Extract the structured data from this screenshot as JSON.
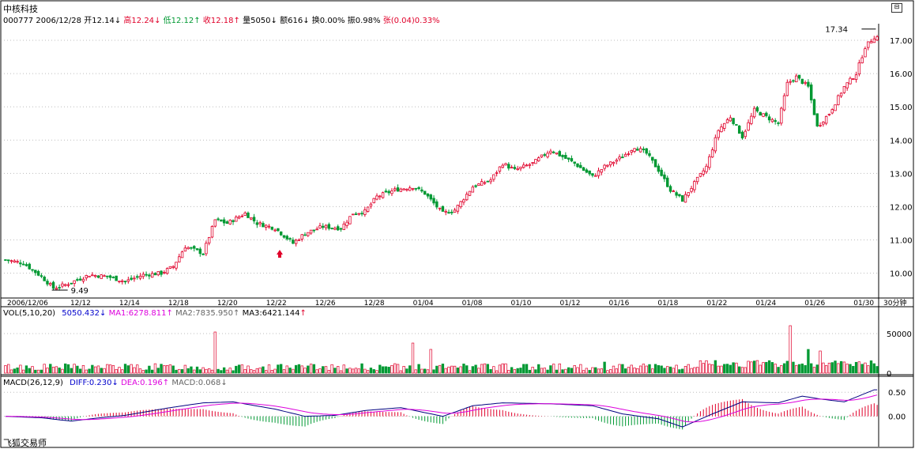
{
  "header": {
    "stock_name": "中核科技",
    "code": "000777",
    "date": "2006/12/28",
    "open_label": "开12.14",
    "high_label": "高12.24",
    "low_label": "低12.12",
    "close_label": "收12.18",
    "volume_label": "量5050",
    "amount_label": "额616",
    "turnover_label": "换0.00%",
    "amplitude_label": "振0.98%",
    "change_label": "张",
    "change_value": "(0.04)0.33%",
    "arrow_down": "↓",
    "arrow_up": "↑"
  },
  "volume_header": {
    "title": "VOL(5,10,20)",
    "value": "5050.432",
    "ma1": "MA1:6278.811",
    "ma2": "MA2:7835.950",
    "ma3": "MA3:6421.144"
  },
  "macd_header": {
    "title": "MACD(26,12,9)",
    "diff": "DIFF:0.230",
    "dea": "DEA:0.196",
    "macd": "MACD:0.068"
  },
  "brand": "飞狐交易师",
  "period_label": "30分钟",
  "colors": {
    "up": "#e0002a",
    "down": "#009933",
    "ma_pink": "#dd00dd",
    "diff_blue": "#000080",
    "grid": "#bdbdbd"
  },
  "chart_data": {
    "type": "candlestick",
    "price_axis": {
      "min": 9.3,
      "max": 17.5,
      "ticks": [
        "10.00",
        "11.00",
        "12.00",
        "13.00",
        "14.00",
        "15.00",
        "16.00",
        "17.00"
      ]
    },
    "date_labels": [
      "2006/12/06",
      "12/12",
      "12/14",
      "12/18",
      "12/20",
      "12/22",
      "12/26",
      "12/28",
      "01/04",
      "01/08",
      "01/10",
      "01/12",
      "01/16",
      "01/18",
      "01/22",
      "01/24",
      "01/26",
      "01/30"
    ],
    "annotations": {
      "high": "17.34",
      "low": "9.49"
    },
    "close_anchors": [
      [
        0,
        10.4
      ],
      [
        6,
        10.3
      ],
      [
        12,
        9.9
      ],
      [
        16,
        9.55
      ],
      [
        20,
        9.65
      ],
      [
        28,
        9.95
      ],
      [
        34,
        9.9
      ],
      [
        40,
        9.75
      ],
      [
        46,
        9.95
      ],
      [
        52,
        10.0
      ],
      [
        56,
        10.2
      ],
      [
        60,
        10.8
      ],
      [
        66,
        10.6
      ],
      [
        70,
        11.6
      ],
      [
        74,
        11.5
      ],
      [
        80,
        11.8
      ],
      [
        84,
        11.5
      ],
      [
        90,
        11.35
      ],
      [
        96,
        10.9
      ],
      [
        100,
        11.2
      ],
      [
        106,
        11.4
      ],
      [
        112,
        11.35
      ],
      [
        116,
        11.8
      ],
      [
        120,
        11.85
      ],
      [
        124,
        12.3
      ],
      [
        130,
        12.5
      ],
      [
        136,
        12.6
      ],
      [
        140,
        12.4
      ],
      [
        146,
        11.8
      ],
      [
        150,
        11.9
      ],
      [
        156,
        12.6
      ],
      [
        162,
        12.8
      ],
      [
        166,
        13.3
      ],
      [
        170,
        13.1
      ],
      [
        176,
        13.3
      ],
      [
        182,
        13.7
      ],
      [
        186,
        13.5
      ],
      [
        190,
        13.3
      ],
      [
        196,
        12.9
      ],
      [
        200,
        13.2
      ],
      [
        206,
        13.5
      ],
      [
        210,
        13.8
      ],
      [
        214,
        13.6
      ],
      [
        218,
        13.1
      ],
      [
        222,
        12.5
      ],
      [
        226,
        12.2
      ],
      [
        230,
        12.7
      ],
      [
        234,
        13.2
      ],
      [
        238,
        14.3
      ],
      [
        242,
        14.7
      ],
      [
        246,
        14.1
      ],
      [
        250,
        14.9
      ],
      [
        254,
        14.7
      ],
      [
        258,
        14.5
      ],
      [
        261,
        15.7
      ],
      [
        264,
        15.9
      ],
      [
        268,
        15.6
      ],
      [
        271,
        14.4
      ],
      [
        275,
        14.8
      ],
      [
        280,
        15.6
      ],
      [
        284,
        16.0
      ],
      [
        287,
        16.8
      ],
      [
        290,
        17.1
      ]
    ],
    "volume_axis": {
      "min": 0,
      "max": 70000,
      "ticks": [
        "0",
        "50000"
      ]
    },
    "macd_axis": {
      "min": -0.35,
      "max": 0.7,
      "ticks": [
        "0.00",
        "0.50"
      ]
    },
    "macd_anchors": [
      [
        0,
        0.0
      ],
      [
        12,
        -0.03
      ],
      [
        22,
        -0.1
      ],
      [
        30,
        -0.04
      ],
      [
        40,
        0.02
      ],
      [
        55,
        0.18
      ],
      [
        66,
        0.28
      ],
      [
        76,
        0.3
      ],
      [
        90,
        0.15
      ],
      [
        100,
        0.0
      ],
      [
        110,
        0.02
      ],
      [
        120,
        0.12
      ],
      [
        132,
        0.18
      ],
      [
        146,
        0.0
      ],
      [
        156,
        0.22
      ],
      [
        166,
        0.28
      ],
      [
        182,
        0.26
      ],
      [
        196,
        0.22
      ],
      [
        206,
        0.05
      ],
      [
        218,
        -0.05
      ],
      [
        226,
        -0.22
      ],
      [
        236,
        0.05
      ],
      [
        246,
        0.3
      ],
      [
        258,
        0.28
      ],
      [
        266,
        0.42
      ],
      [
        272,
        0.36
      ],
      [
        280,
        0.3
      ],
      [
        290,
        0.55
      ]
    ]
  }
}
